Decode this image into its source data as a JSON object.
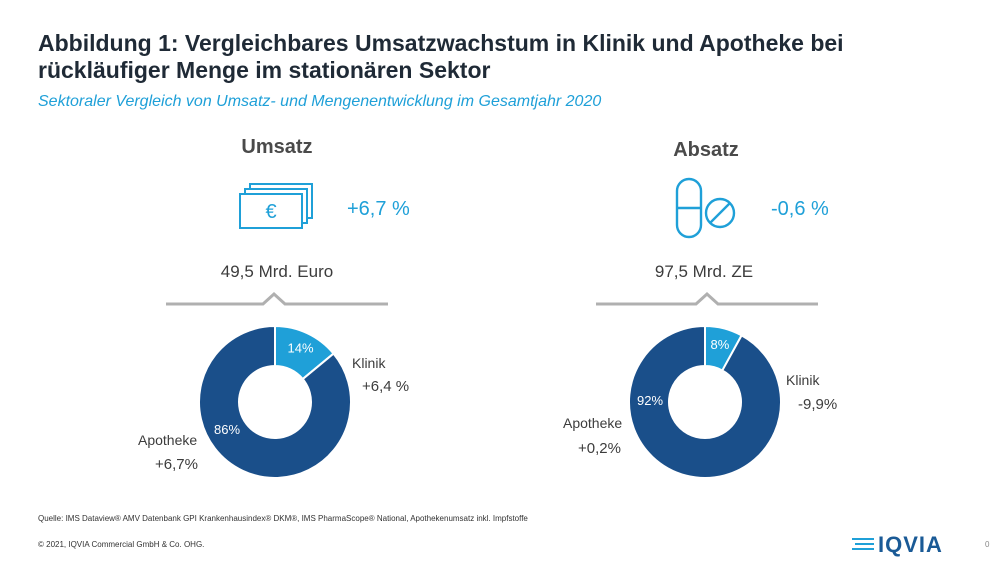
{
  "header": {
    "title": "Abbildung 1: Vergleichbares Umsatzwachstum in Klinik und Apotheke bei rückläufiger Menge im stationären Sektor",
    "subtitle": "Sektoraler Vergleich von Umsatz- und Mengenentwicklung im Gesamtjahr 2020"
  },
  "colors": {
    "apotheke": "#1a4f8a",
    "klinik": "#1fa0d8",
    "accent": "#1fa0d8",
    "line": "#b0b0b0"
  },
  "chart_data": [
    {
      "type": "pie",
      "variant": "donut",
      "title": "Umsatz",
      "headline_change": "+6,7 %",
      "total": "49,5 Mrd. Euro",
      "icon": "euro-banknotes-icon",
      "slices": [
        {
          "name": "Apotheke",
          "value": 86,
          "label": "86%",
          "change": "+6,7%"
        },
        {
          "name": "Klinik",
          "value": 14,
          "label": "14%",
          "change": "+6,4 %"
        }
      ]
    },
    {
      "type": "pie",
      "variant": "donut",
      "title": "Absatz",
      "headline_change": "-0,6 %",
      "total": "97,5 Mrd. ZE",
      "icon": "pills-icon",
      "slices": [
        {
          "name": "Apotheke",
          "value": 92,
          "label": "92%",
          "change": "+0,2%"
        },
        {
          "name": "Klinik",
          "value": 8,
          "label": "8%",
          "change": "-9,9%"
        }
      ]
    }
  ],
  "footer": {
    "source": "Quelle: IMS Dataview® AMV Datenbank GPI Krankenhausindex® DKM®, IMS PharmaScope® National, Apothekenumsatz inkl. Impfstoffe",
    "copyright": "© 2021, IQVIA Commercial GmbH & Co. OHG.",
    "logo": "IQVIA",
    "page": "0"
  }
}
